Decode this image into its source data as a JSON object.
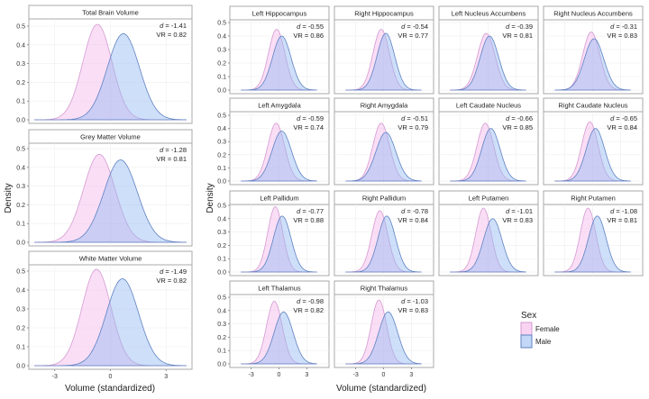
{
  "chart_data": {
    "type": "area",
    "subtype": "density",
    "xlabel": "Volume (standardized)",
    "ylabel": "Density",
    "x_ticks": [
      -3,
      0,
      3
    ],
    "y_ticks": [
      0.0,
      0.1,
      0.2,
      0.3,
      0.4,
      0.5
    ],
    "y_tick_labels": [
      "0.0",
      "0.1",
      "0.2",
      "0.3",
      "0.4",
      "0.5"
    ],
    "ylim": [
      0,
      0.52
    ],
    "grid": true,
    "legend": {
      "title": "Sex",
      "position": "right",
      "entries": [
        "Female",
        "Male"
      ]
    },
    "colors": {
      "Female_fill": "#f4b6ec",
      "Female_line": "#d49bd0",
      "Male_fill": "#92b8f2",
      "Male_line": "#5f82c2"
    },
    "facet_groups": [
      {
        "group": "global",
        "xlim": [
          -4.4,
          4.4
        ],
        "panels": [
          {
            "title": "Total Brain Volume",
            "d": "-1.41",
            "VR": "0.82",
            "female": {
              "mean": -0.7,
              "peak": 0.51
            },
            "male": {
              "mean": 0.7,
              "peak": 0.46
            }
          },
          {
            "title": "Grey Matter Volume",
            "d": "-1.28",
            "VR": "0.81",
            "female": {
              "mean": -0.6,
              "peak": 0.47
            },
            "male": {
              "mean": 0.55,
              "peak": 0.44
            }
          },
          {
            "title": "White Matter Volume",
            "d": "-1.49",
            "VR": "0.82",
            "female": {
              "mean": -0.75,
              "peak": 0.51
            },
            "male": {
              "mean": 0.65,
              "peak": 0.46
            }
          }
        ]
      },
      {
        "group": "subcortical",
        "xlim": [
          -5.3,
          5.4
        ],
        "panels": [
          {
            "title": "Left Hippocampus",
            "d": "-0.55",
            "VR": "0.86",
            "female": {
              "mean": -0.25,
              "peak": 0.45
            },
            "male": {
              "mean": 0.3,
              "peak": 0.4
            }
          },
          {
            "title": "Right Hippocampus",
            "d": "-0.54",
            "VR": "0.77",
            "female": {
              "mean": -0.25,
              "peak": 0.45
            },
            "male": {
              "mean": 0.25,
              "peak": 0.42
            }
          },
          {
            "title": "Left Nucleus Accumbens",
            "d": "-0.39",
            "VR": "0.81",
            "female": {
              "mean": -0.2,
              "peak": 0.42
            },
            "male": {
              "mean": 0.15,
              "peak": 0.4
            }
          },
          {
            "title": "Right Nucleus Accumbens",
            "d": "-0.31",
            "VR": "0.83",
            "female": {
              "mean": -0.15,
              "peak": 0.43
            },
            "male": {
              "mean": 0.15,
              "peak": 0.38
            }
          },
          {
            "title": "Left Amygdala",
            "d": "-0.59",
            "VR": "0.74",
            "female": {
              "mean": -0.3,
              "peak": 0.44
            },
            "male": {
              "mean": 0.3,
              "peak": 0.38
            }
          },
          {
            "title": "Right Amygdala",
            "d": "-0.51",
            "VR": "0.79",
            "female": {
              "mean": -0.25,
              "peak": 0.44
            },
            "male": {
              "mean": 0.25,
              "peak": 0.37
            }
          },
          {
            "title": "Left Caudate Nucleus",
            "d": "-0.66",
            "VR": "0.85",
            "female": {
              "mean": -0.3,
              "peak": 0.44
            },
            "male": {
              "mean": 0.3,
              "peak": 0.4
            }
          },
          {
            "title": "Right Caudate Nucleus",
            "d": "-0.65",
            "VR": "0.84",
            "female": {
              "mean": -0.3,
              "peak": 0.45
            },
            "male": {
              "mean": 0.3,
              "peak": 0.4
            }
          },
          {
            "title": "Left Pallidum",
            "d": "-0.77",
            "VR": "0.88",
            "female": {
              "mean": -0.4,
              "peak": 0.49
            },
            "male": {
              "mean": 0.35,
              "peak": 0.42
            }
          },
          {
            "title": "Right Pallidum",
            "d": "-0.78",
            "VR": "0.84",
            "female": {
              "mean": -0.4,
              "peak": 0.46
            },
            "male": {
              "mean": 0.35,
              "peak": 0.42
            }
          },
          {
            "title": "Left Putamen",
            "d": "-1.01",
            "VR": "0.83",
            "female": {
              "mean": -0.5,
              "peak": 0.48
            },
            "male": {
              "mean": 0.5,
              "peak": 0.4
            }
          },
          {
            "title": "Right Putamen",
            "d": "-1.08",
            "VR": "0.81",
            "female": {
              "mean": -0.5,
              "peak": 0.48
            },
            "male": {
              "mean": 0.5,
              "peak": 0.42
            }
          },
          {
            "title": "Left Thalamus",
            "d": "-0.98",
            "VR": "0.82",
            "female": {
              "mean": -0.5,
              "peak": 0.47
            },
            "male": {
              "mean": 0.5,
              "peak": 0.39
            }
          },
          {
            "title": "Right Thalamus",
            "d": "-1.03",
            "VR": "0.83",
            "female": {
              "mean": -0.5,
              "peak": 0.48
            },
            "male": {
              "mean": 0.5,
              "peak": 0.39
            }
          }
        ]
      }
    ]
  }
}
